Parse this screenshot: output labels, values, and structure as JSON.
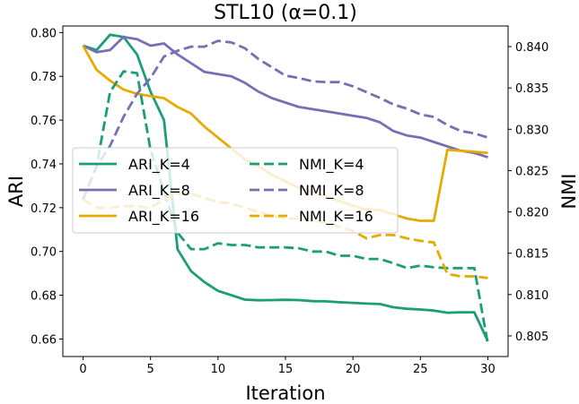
{
  "chart_data": {
    "type": "line",
    "title": "STL10 (α=0.1)",
    "xlabel": "Iteration",
    "ylabel": "ARI",
    "ylabel_right": "NMI",
    "xlim": [
      -1.5,
      31.5
    ],
    "ylim": [
      0.652,
      0.803
    ],
    "ylim_right": [
      0.8025,
      0.8425
    ],
    "xticks": [
      0,
      5,
      10,
      15,
      20,
      25,
      30
    ],
    "yticks": [
      0.66,
      0.68,
      0.7,
      0.72,
      0.74,
      0.76,
      0.78,
      0.8
    ],
    "yticks_right": [
      0.805,
      0.81,
      0.815,
      0.82,
      0.825,
      0.83,
      0.835,
      0.84
    ],
    "ytick_labels": [
      "0.66",
      "0.68",
      "0.70",
      "0.72",
      "0.74",
      "0.76",
      "0.78",
      "0.80"
    ],
    "ytick_labels_right": [
      "0.805",
      "0.810",
      "0.815",
      "0.820",
      "0.825",
      "0.830",
      "0.835",
      "0.840"
    ],
    "legend_placement": "center-left",
    "grid": false,
    "x": [
      0,
      1,
      2,
      3,
      4,
      5,
      6,
      7,
      8,
      9,
      10,
      11,
      12,
      13,
      14,
      15,
      16,
      17,
      18,
      19,
      20,
      21,
      22,
      23,
      24,
      25,
      26,
      27,
      28,
      29,
      30
    ],
    "series": [
      {
        "name": "ARI_K=4",
        "axis": "left",
        "style": "solid",
        "color": "#1b9e77",
        "values": [
          0.794,
          0.792,
          0.799,
          0.798,
          0.79,
          0.773,
          0.76,
          0.701,
          0.691,
          0.686,
          0.682,
          0.68,
          0.678,
          0.6777,
          0.6778,
          0.6779,
          0.6778,
          0.6773,
          0.6772,
          0.6768,
          0.6765,
          0.6762,
          0.676,
          0.6745,
          0.6738,
          0.6735,
          0.673,
          0.672,
          0.6722,
          0.6722,
          0.659
        ]
      },
      {
        "name": "ARI_K=8",
        "axis": "left",
        "style": "solid",
        "color": "#7570b3",
        "values": [
          0.794,
          0.791,
          0.792,
          0.798,
          0.797,
          0.794,
          0.795,
          0.79,
          0.786,
          0.782,
          0.781,
          0.78,
          0.777,
          0.773,
          0.77,
          0.768,
          0.766,
          0.765,
          0.764,
          0.763,
          0.762,
          0.761,
          0.759,
          0.755,
          0.753,
          0.752,
          0.75,
          0.748,
          0.746,
          0.745,
          0.743
        ]
      },
      {
        "name": "ARI_K=16",
        "axis": "left",
        "style": "solid",
        "color": "#e6ab02",
        "values": [
          0.794,
          0.783,
          0.778,
          0.774,
          0.772,
          0.771,
          0.77,
          0.766,
          0.763,
          0.757,
          0.752,
          0.747,
          0.742,
          0.739,
          0.735,
          0.732,
          0.729,
          0.727,
          0.725,
          0.723,
          0.721,
          0.719,
          0.719,
          0.717,
          0.715,
          0.714,
          0.714,
          0.7465,
          0.746,
          0.7455,
          0.745
        ]
      },
      {
        "name": "NMI_K=4",
        "axis": "right",
        "style": "dashed",
        "color": "#1b9e77",
        "values": [
          0.8215,
          0.8255,
          0.8345,
          0.837,
          0.8368,
          0.8275,
          0.8225,
          0.8175,
          0.8155,
          0.8155,
          0.8162,
          0.816,
          0.816,
          0.8157,
          0.8157,
          0.8157,
          0.8156,
          0.8152,
          0.8152,
          0.8147,
          0.8147,
          0.8143,
          0.8143,
          0.8138,
          0.8132,
          0.8135,
          0.8133,
          0.8132,
          0.8132,
          0.8132,
          0.804
        ]
      },
      {
        "name": "NMI_K=8",
        "axis": "right",
        "style": "dashed",
        "color": "#7570b3",
        "values": [
          0.8215,
          0.8255,
          0.828,
          0.8315,
          0.8343,
          0.8362,
          0.8388,
          0.8395,
          0.84,
          0.84,
          0.8407,
          0.8405,
          0.8398,
          0.8385,
          0.8375,
          0.8365,
          0.8362,
          0.8358,
          0.8357,
          0.8357,
          0.8352,
          0.8345,
          0.8338,
          0.833,
          0.8325,
          0.8318,
          0.8315,
          0.8305,
          0.8298,
          0.8295,
          0.829
        ]
      },
      {
        "name": "NMI_K=16",
        "axis": "right",
        "style": "dashed",
        "color": "#e6ab02",
        "values": [
          0.8215,
          0.8205,
          0.8205,
          0.8207,
          0.8207,
          0.8205,
          0.8215,
          0.8222,
          0.8222,
          0.8217,
          0.8212,
          0.821,
          0.8205,
          0.82,
          0.8195,
          0.8192,
          0.8192,
          0.819,
          0.8187,
          0.8182,
          0.8177,
          0.8168,
          0.8172,
          0.8172,
          0.8168,
          0.8165,
          0.8163,
          0.8125,
          0.8122,
          0.8122,
          0.812
        ]
      }
    ]
  }
}
